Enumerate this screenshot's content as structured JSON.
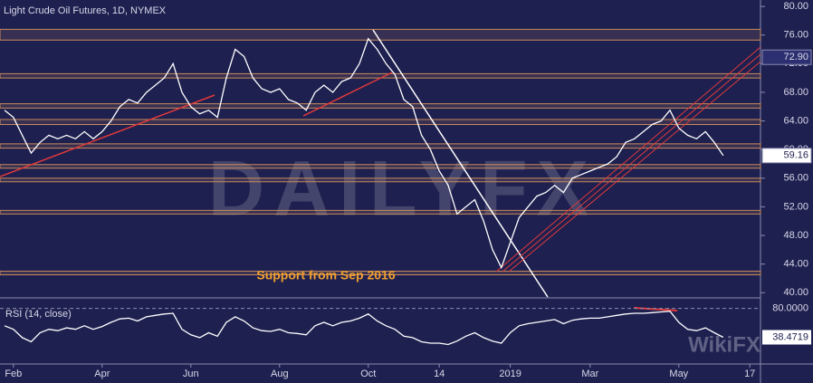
{
  "chart_data": [
    {
      "type": "line",
      "title": "Light Crude Oil Futures, 1D, NYMEX",
      "color": "#ffffff",
      "categories": [
        null,
        "Feb",
        null,
        null,
        null,
        null,
        null,
        null,
        null,
        null,
        null,
        "Apr",
        null,
        null,
        null,
        null,
        null,
        null,
        null,
        null,
        null,
        "Jun",
        null,
        null,
        null,
        null,
        null,
        null,
        null,
        null,
        null,
        "Aug",
        null,
        null,
        null,
        null,
        null,
        null,
        null,
        null,
        null,
        "Oct",
        null,
        null,
        null,
        null,
        null,
        null,
        null,
        "14",
        null,
        null,
        null,
        null,
        null,
        null,
        null,
        "2019",
        null,
        null,
        null,
        null,
        null,
        null,
        null,
        null,
        "Mar",
        null,
        null,
        null,
        null,
        null,
        null,
        null,
        null,
        null,
        "May",
        null,
        null,
        null,
        null,
        null,
        null,
        null,
        "17"
      ],
      "values": [
        65.5,
        64.5,
        62,
        59.5,
        61,
        62,
        61.5,
        62,
        61.5,
        62.5,
        61.5,
        62.5,
        64,
        66,
        67,
        66.5,
        68,
        69,
        70,
        72,
        68,
        66,
        65,
        65.5,
        64.5,
        70,
        74,
        73,
        70,
        68.5,
        68,
        68.5,
        67,
        66.5,
        65.5,
        68,
        69,
        68,
        69.5,
        70,
        72,
        75.5,
        74,
        72,
        70.5,
        67,
        66,
        62,
        60,
        57,
        55,
        51,
        52,
        53,
        50,
        46,
        43.5,
        47,
        50.5,
        52,
        53.5,
        54,
        55,
        54,
        56,
        56.5,
        57,
        57.5,
        58,
        59,
        61,
        61.5,
        62.5,
        63.5,
        64,
        65.5,
        63,
        62,
        61.5,
        62.5,
        61,
        59.16,
        null,
        null,
        null
      ],
      "ylim": [
        39.4,
        80.9
      ],
      "yticks": [
        {
          "value": 40,
          "label": "40.00"
        },
        {
          "value": 44,
          "label": "44.00"
        },
        {
          "value": 48,
          "label": "48.00"
        },
        {
          "value": 52,
          "label": "52.00"
        },
        {
          "value": 56,
          "label": "56.00"
        },
        {
          "value": 60,
          "label": "60.00"
        },
        {
          "value": 64,
          "label": "64.00"
        },
        {
          "value": 68,
          "label": "68.00"
        },
        {
          "value": 72,
          "label": "72.00"
        },
        {
          "value": 76,
          "label": "76.00"
        },
        {
          "value": 80,
          "label": "80.00"
        }
      ],
      "zones": [
        [
          75.3,
          76.8
        ],
        [
          70,
          70.6
        ],
        [
          65.8,
          66.4
        ],
        [
          63.5,
          64.2
        ],
        [
          60.2,
          60.8
        ],
        [
          57.4,
          57.9
        ],
        [
          55.5,
          56
        ],
        [
          51,
          51.5
        ],
        [
          42.5,
          43
        ]
      ],
      "price_labels": [
        {
          "value": 72.9,
          "label": "72.90"
        },
        {
          "value": 59.16,
          "label": "59.16"
        }
      ],
      "annotation": "Support from Sep 2016",
      "watermark": "DAILYFX"
    },
    {
      "type": "line",
      "title": "RSI (14, close)",
      "color": "#ffffff",
      "values": [
        55,
        50,
        38,
        32,
        45,
        50,
        48,
        52,
        50,
        55,
        50,
        54,
        60,
        65,
        66,
        62,
        68,
        70,
        72,
        73,
        50,
        42,
        38,
        45,
        40,
        60,
        68,
        62,
        52,
        48,
        47,
        50,
        45,
        44,
        42,
        55,
        60,
        55,
        60,
        62,
        66,
        72,
        62,
        55,
        50,
        40,
        38,
        32,
        30,
        30,
        28,
        33,
        40,
        45,
        38,
        33,
        30,
        45,
        55,
        58,
        60,
        62,
        64,
        58,
        63,
        65,
        66,
        66,
        68,
        70,
        72,
        73,
        73,
        74,
        75,
        76,
        60,
        50,
        48,
        52,
        45,
        38.4719,
        null,
        null,
        null
      ],
      "ylim": [
        0,
        90
      ],
      "yticks": [
        {
          "value": 80,
          "label": "80.0000"
        }
      ],
      "last_label": {
        "value": 38.4719,
        "label": "38.4719"
      },
      "watermark": "WikiFX"
    }
  ]
}
